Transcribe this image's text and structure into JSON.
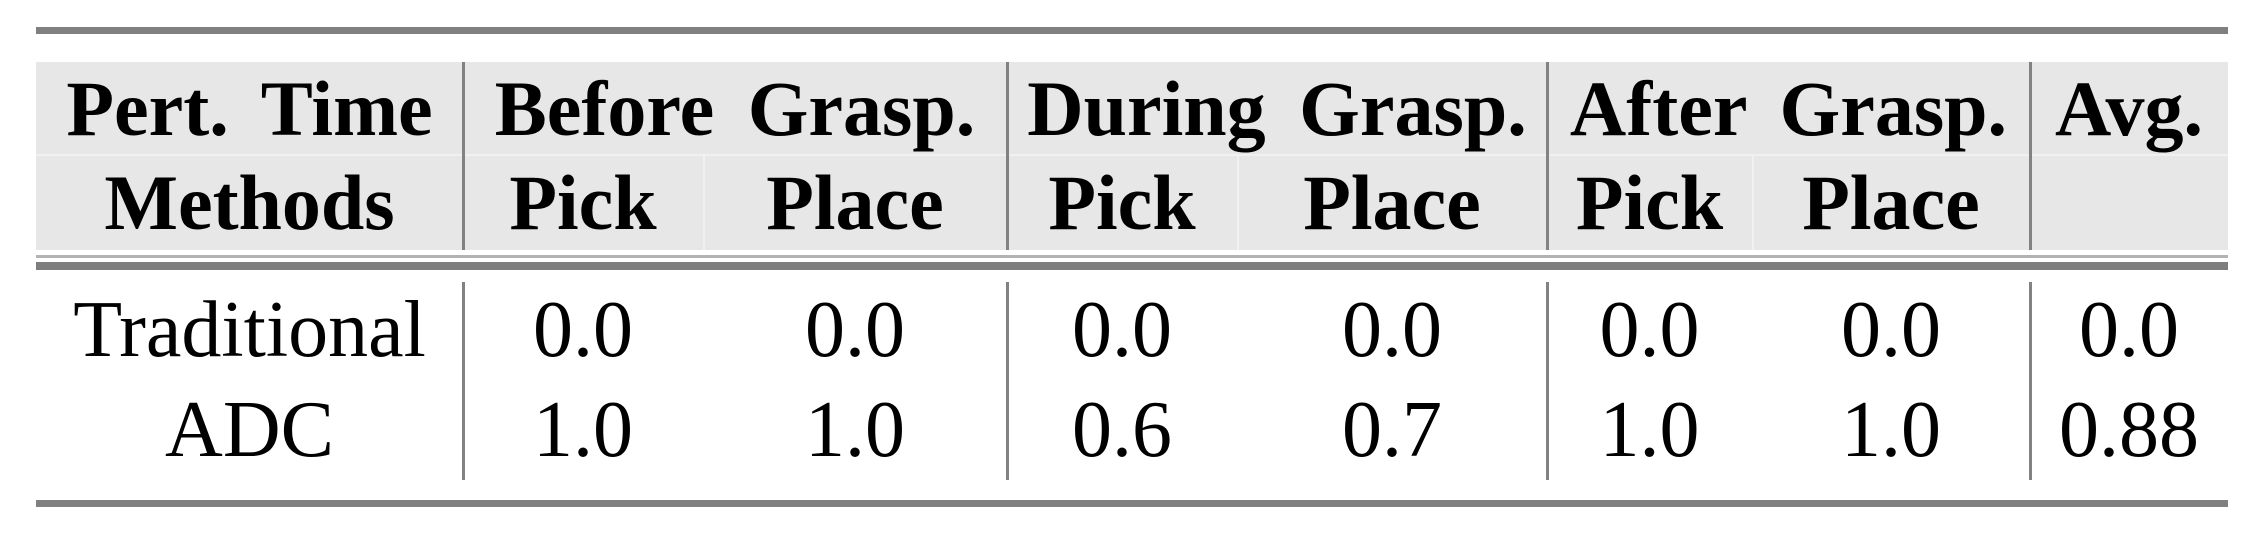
{
  "page": {
    "background": "#ffffff",
    "style": {
      "header_bg": "#e7e7e7",
      "rule_color": "#808080",
      "thin_rule_color": "#b3b3b3",
      "column_rule_color": "#828282",
      "text_color": "#000000"
    }
  },
  "table": {
    "header": {
      "col1_line1": "Pert. Time",
      "col1_line2": "Methods",
      "groups": [
        {
          "label": "Before Grasp.",
          "sub": [
            "Pick",
            "Place"
          ]
        },
        {
          "label": "During Grasp.",
          "sub": [
            "Pick",
            "Place"
          ]
        },
        {
          "label": "After Grasp.",
          "sub": [
            "Pick",
            "Place"
          ]
        }
      ],
      "avg_label": "Avg."
    },
    "rows": [
      {
        "method": "Traditional",
        "values": [
          "0.0",
          "0.0",
          "0.0",
          "0.0",
          "0.0",
          "0.0",
          "0.0"
        ]
      },
      {
        "method": "ADC",
        "values": [
          "1.0",
          "1.0",
          "0.6",
          "0.7",
          "1.0",
          "1.0",
          "0.88"
        ]
      }
    ]
  }
}
